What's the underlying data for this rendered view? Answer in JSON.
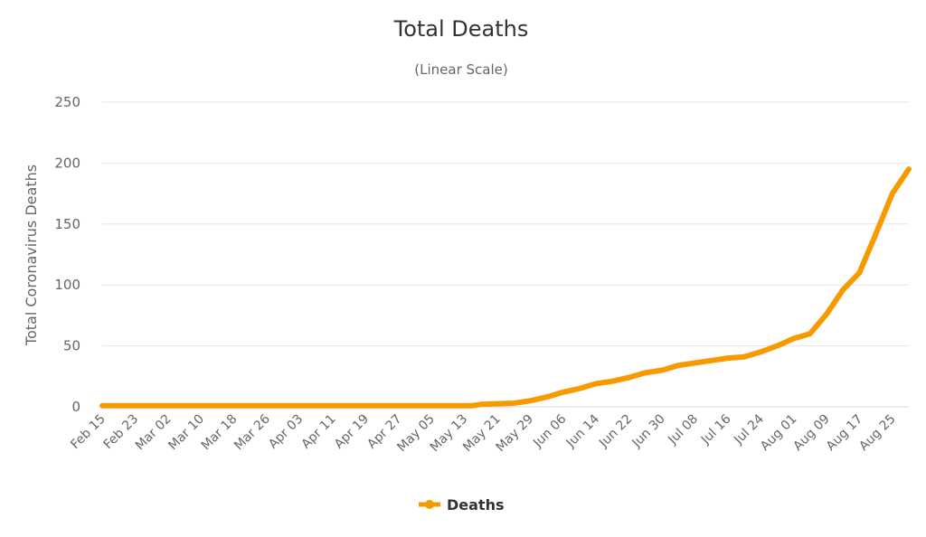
{
  "chart_data": {
    "type": "line",
    "title": "Total Deaths",
    "subtitle": "(Linear Scale)",
    "ylabel": "Total Coronavirus Deaths",
    "xlabel": "",
    "ylim": [
      0,
      250
    ],
    "yticks": [
      "0",
      "50",
      "100",
      "150",
      "200",
      "250"
    ],
    "ytick_values": [
      0,
      50,
      100,
      150,
      200,
      250
    ],
    "x_days_total": 196,
    "xticks": [
      "Feb 15",
      "Feb 23",
      "Mar 02",
      "Mar 10",
      "Mar 18",
      "Mar 26",
      "Apr 03",
      "Apr 11",
      "Apr 19",
      "Apr 27",
      "May 05",
      "May 13",
      "May 21",
      "May 29",
      "Jun 06",
      "Jun 14",
      "Jun 22",
      "Jun 30",
      "Jul 08",
      "Jul 16",
      "Jul 24",
      "Aug 01",
      "Aug 09",
      "Aug 17",
      "Aug 25"
    ],
    "xtick_step_days": 8,
    "grid": true,
    "legend": "bottom-center",
    "series": [
      {
        "name": "Deaths",
        "color": "#f79a00",
        "points_day_value": [
          [
            0,
            1
          ],
          [
            90,
            1
          ],
          [
            92,
            2
          ],
          [
            100,
            3
          ],
          [
            104,
            5
          ],
          [
            108,
            8
          ],
          [
            112,
            12
          ],
          [
            116,
            15
          ],
          [
            120,
            19
          ],
          [
            124,
            21
          ],
          [
            128,
            24
          ],
          [
            132,
            28
          ],
          [
            136,
            30
          ],
          [
            140,
            34
          ],
          [
            144,
            36
          ],
          [
            148,
            38
          ],
          [
            152,
            40
          ],
          [
            156,
            41
          ],
          [
            160,
            45
          ],
          [
            164,
            50
          ],
          [
            168,
            56
          ],
          [
            172,
            60
          ],
          [
            176,
            76
          ],
          [
            180,
            96
          ],
          [
            184,
            110
          ],
          [
            188,
            142
          ],
          [
            192,
            175
          ],
          [
            196,
            195
          ]
        ]
      }
    ]
  }
}
